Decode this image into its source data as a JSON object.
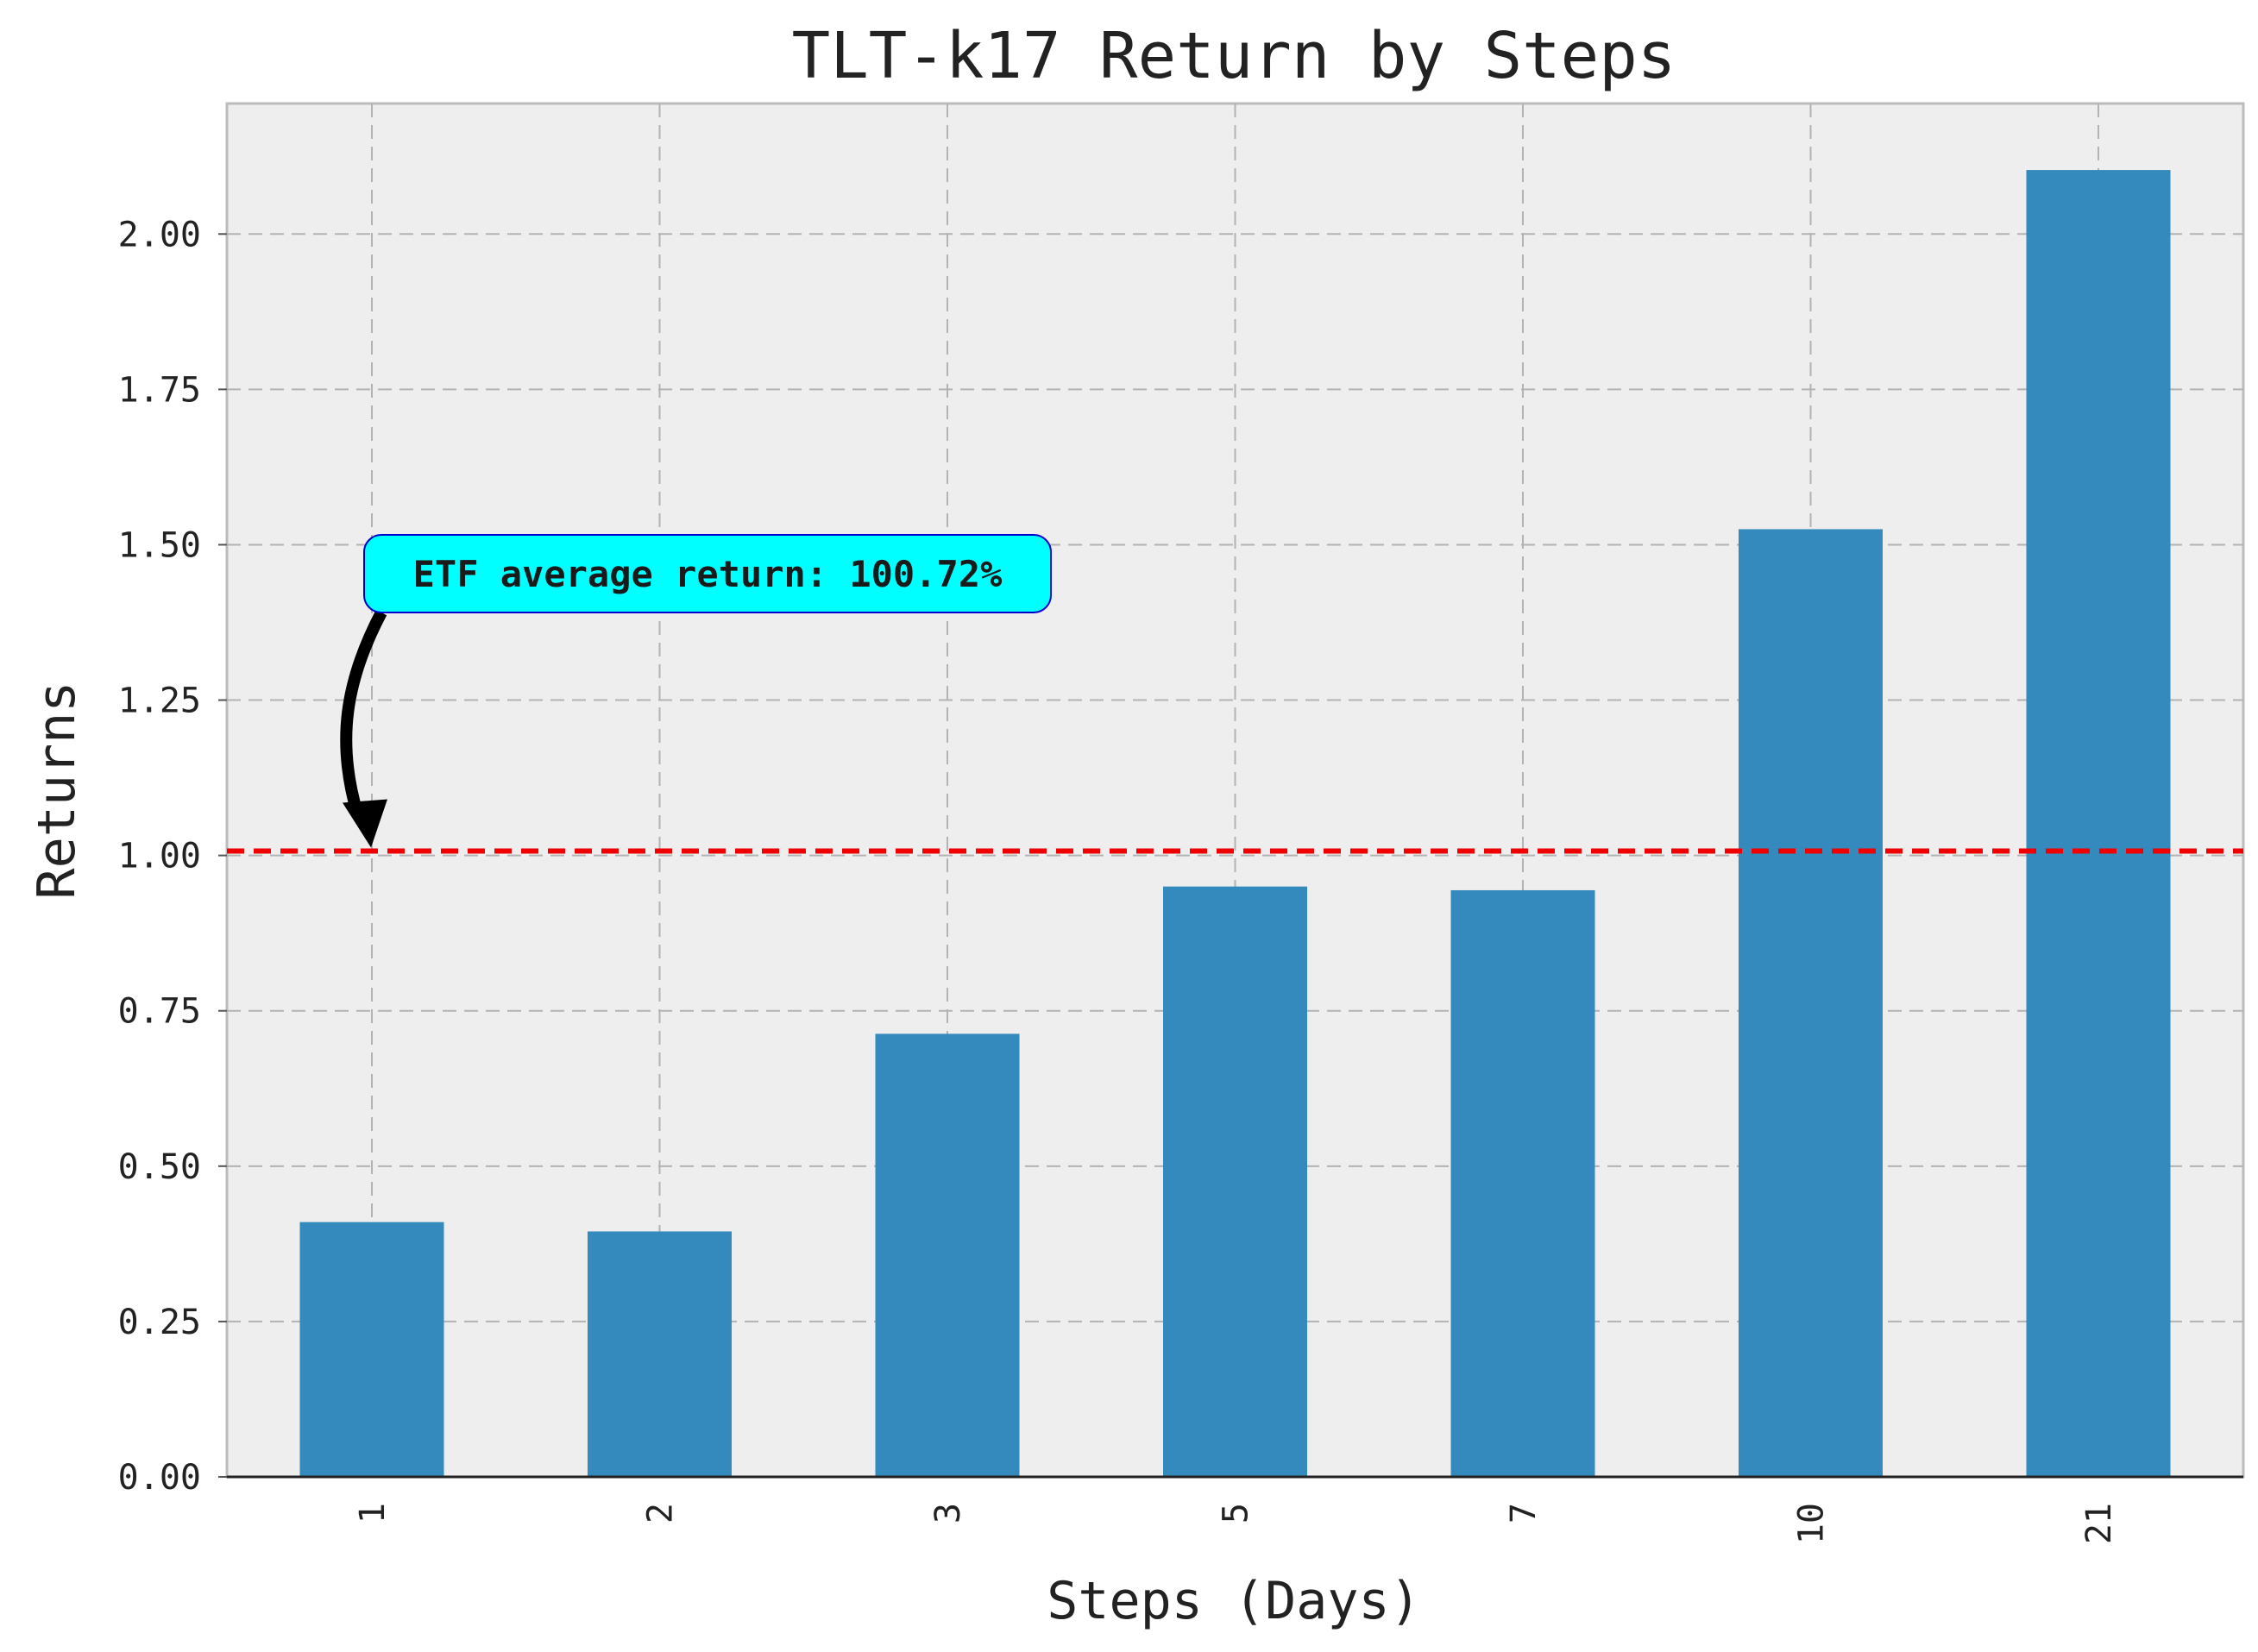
{
  "chart_data": {
    "type": "bar",
    "title": "TLT-k17 Return by Steps",
    "xlabel": "Steps (Days)",
    "ylabel": "Returns",
    "categories": [
      "1",
      "2",
      "3",
      "5",
      "7",
      "10",
      "21"
    ],
    "values": [
      0.41,
      0.395,
      0.713,
      0.95,
      0.944,
      1.525,
      2.103
    ],
    "ylim": [
      0,
      2.21
    ],
    "yticks": [
      0,
      0.25,
      0.5,
      0.75,
      1.0,
      1.25,
      1.5,
      1.75,
      2.0
    ],
    "ytick_labels": [
      "0.00",
      "0.25",
      "0.50",
      "0.75",
      "1.00",
      "1.25",
      "1.50",
      "1.75",
      "2.00"
    ],
    "grid": true,
    "bar_color": "#348abd",
    "background_color": "#eeeeee",
    "reference_line": {
      "value": 1.0072,
      "color": "#ee0000",
      "style": "dashed"
    },
    "annotation": {
      "text": "ETF average return: 100.72%",
      "points_to": {
        "category": "1",
        "value": 1.0072
      },
      "box_color": "#00ffff",
      "border_color": "#0000cc"
    }
  }
}
